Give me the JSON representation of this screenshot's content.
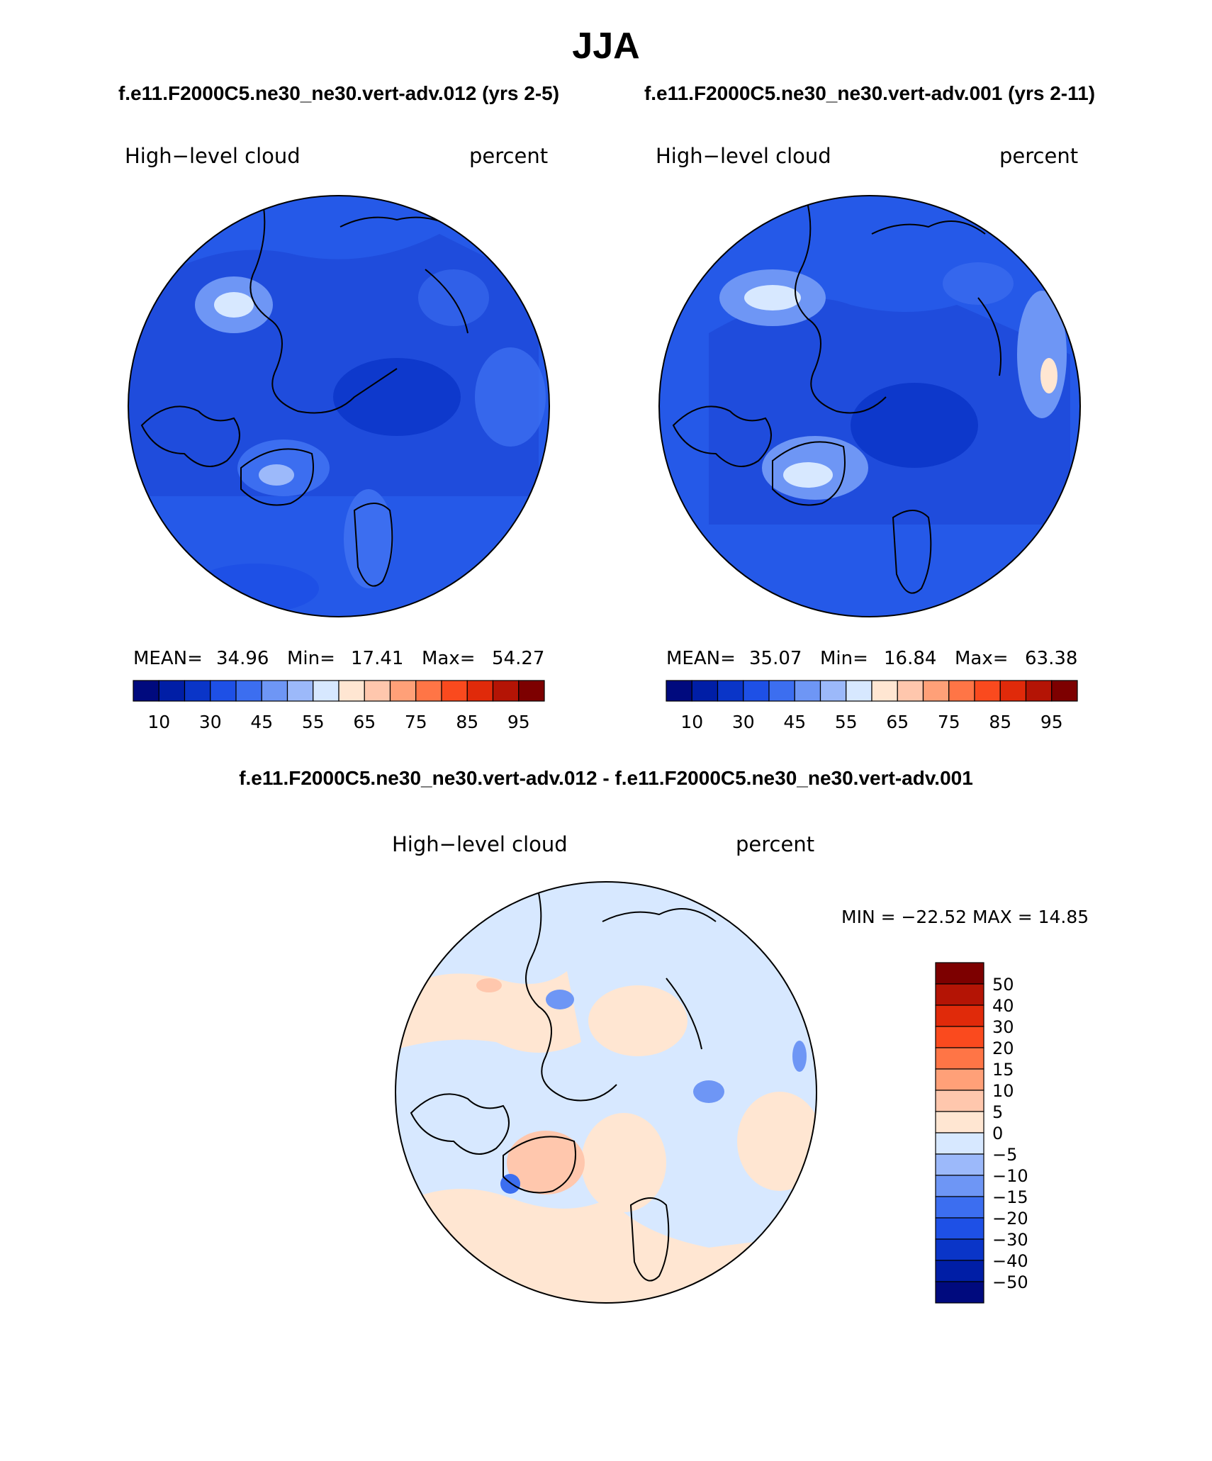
{
  "figure": {
    "season": "JJA",
    "case_left_title": "f.e11.F2000C5.ne30_ne30.vert-adv.012 (yrs 2-5)",
    "case_right_title": "f.e11.F2000C5.ne30_ne30.vert-adv.001 (yrs 2-11)",
    "diff_title": "f.e11.F2000C5.ne30_ne30.vert-adv.012 - f.e11.F2000C5.ne30_ne30.vert-adv.001"
  },
  "panels": {
    "left": {
      "variable": "High−level cloud",
      "units": "percent",
      "mean_label": "MEAN=",
      "mean": "34.96",
      "min_label": "Min=",
      "min": "17.41",
      "max_label": "Max=",
      "max": "54.27"
    },
    "right": {
      "variable": "High−level cloud",
      "units": "percent",
      "mean_label": "MEAN=",
      "mean": "35.07",
      "min_label": "Min=",
      "min": "16.84",
      "max_label": "Max=",
      "max": "63.38"
    },
    "diff": {
      "variable": "High−level cloud",
      "units": "percent",
      "minmax_text": "MIN = −22.52 MAX =   14.85"
    }
  },
  "colorbars": {
    "absolute": {
      "colors": [
        "#000a7e",
        "#001ea6",
        "#0a35c8",
        "#1e50e6",
        "#3c6ef0",
        "#6e96f5",
        "#9cb9fa",
        "#d7e8ff",
        "#ffe6d2",
        "#ffc7ad",
        "#ffa078",
        "#ff7546",
        "#fa4a1e",
        "#e02a0a",
        "#b41405",
        "#7d0000"
      ],
      "labels": [
        "10",
        "30",
        "45",
        "55",
        "65",
        "75",
        "85",
        "95"
      ]
    },
    "difference": {
      "colors": [
        "#000a7e",
        "#001ea6",
        "#0a35c8",
        "#1e50e6",
        "#3c6ef0",
        "#6e96f5",
        "#9cb9fa",
        "#d7e8ff",
        "#ffe6d2",
        "#ffc7ad",
        "#ffa078",
        "#ff7546",
        "#fa4a1e",
        "#e02a0a",
        "#b41405",
        "#7d0000"
      ],
      "labels": [
        "50",
        "40",
        "30",
        "20",
        "15",
        "10",
        "5",
        "0",
        "−5",
        "−10",
        "−15",
        "−20",
        "−30",
        "−40",
        "−50"
      ]
    }
  },
  "map_colors": {
    "left_base": "#1e50e6",
    "right_base": "#1e50e6",
    "diff_base": "#d7e8ff"
  }
}
